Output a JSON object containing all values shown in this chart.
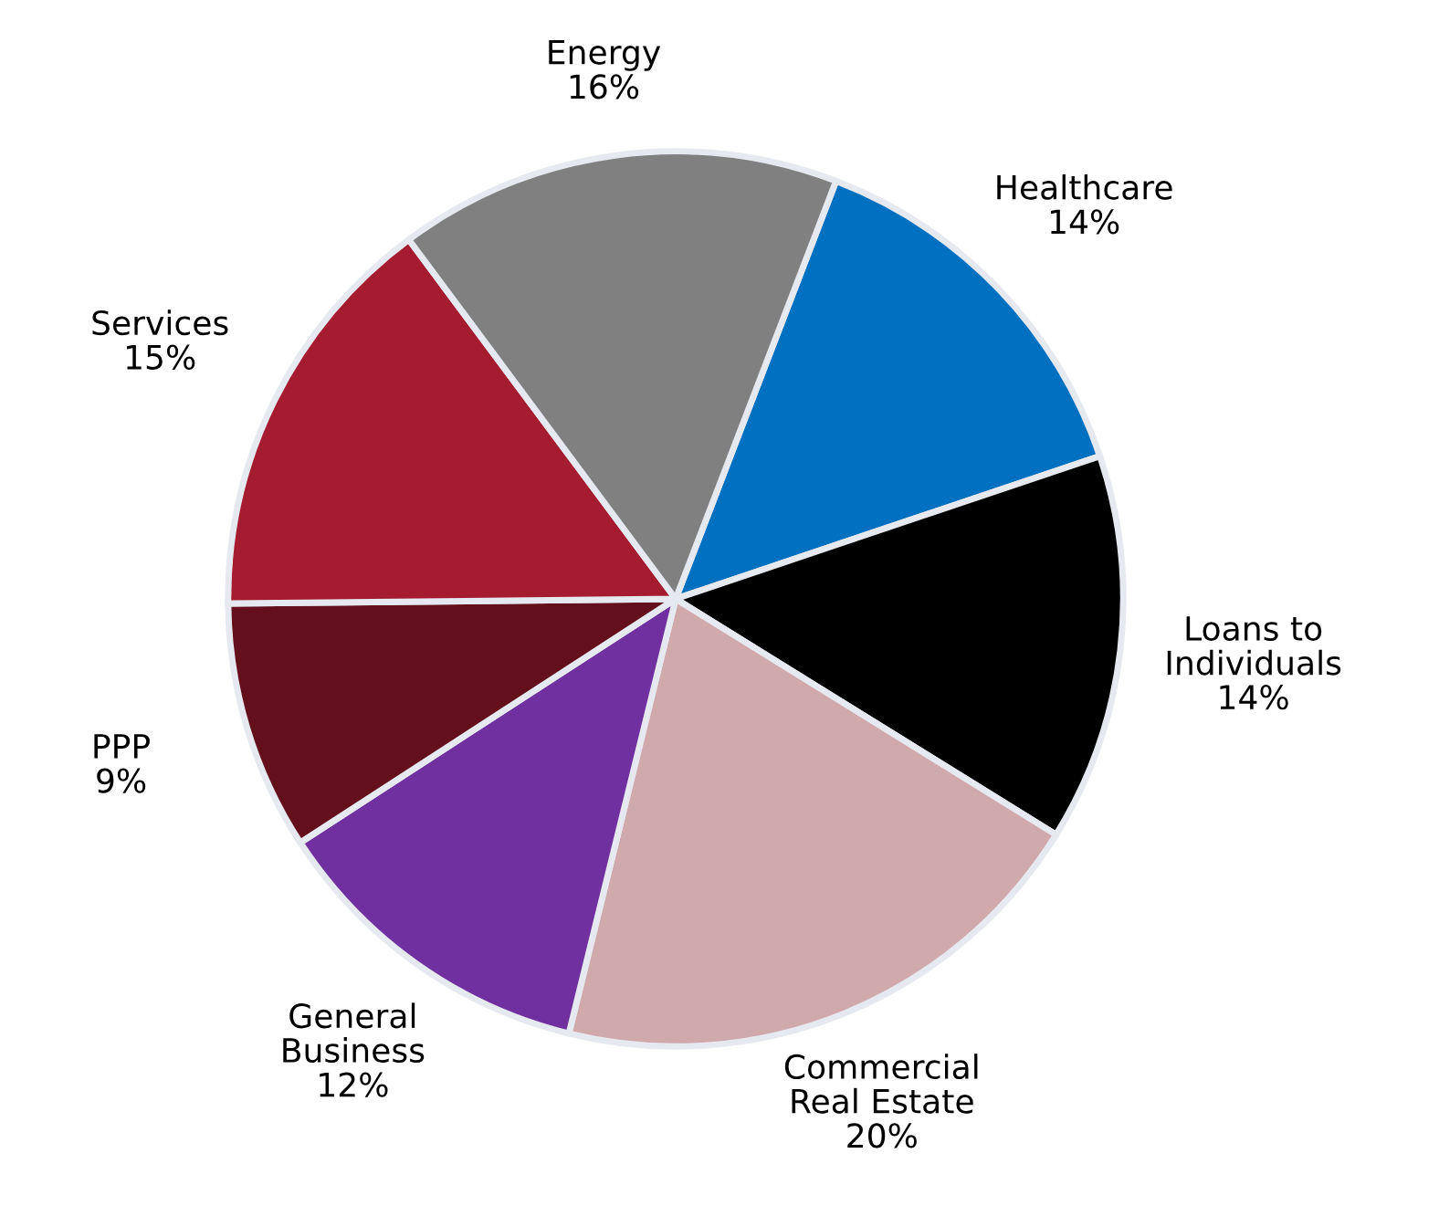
{
  "chart_data": {
    "type": "pie",
    "categories": [
      "Healthcare",
      "Loans to\nIndividuals",
      "Commercial\nReal Estate",
      "General\nBusiness",
      "PPP",
      "Services",
      "Energy"
    ],
    "values": [
      14,
      14,
      20,
      12,
      9,
      15,
      16
    ],
    "value_labels": [
      "14%",
      "14%",
      "20%",
      "12%",
      "9%",
      "15%",
      "16%"
    ],
    "colors": [
      "#0070c0",
      "#000000",
      "#d0a9ad",
      "#7030a0",
      "#63101c",
      "#a51c30",
      "#808080"
    ],
    "legend": false
  }
}
